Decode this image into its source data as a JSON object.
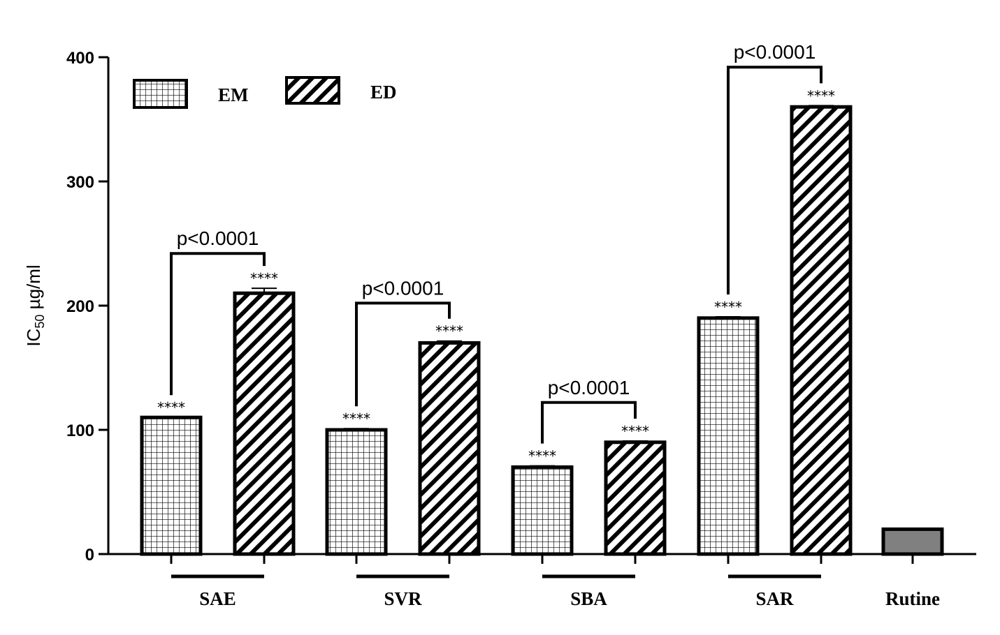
{
  "chart_data": {
    "type": "bar",
    "ylabel_main": "IC",
    "ylabel_sub": "50",
    "ylabel_unit": " µg/ml",
    "ylim": [
      0,
      400
    ],
    "yticks": [
      "0",
      "100",
      "200",
      "300",
      "400"
    ],
    "legend": [
      {
        "key": "EM",
        "label": "EM",
        "pattern": "grid"
      },
      {
        "key": "ED",
        "label": "ED",
        "pattern": "diagonal"
      }
    ],
    "legend_position": "top-left",
    "groups": [
      {
        "label": "SAE",
        "bars": [
          {
            "series": "EM",
            "value": 110,
            "error": 0,
            "stars": "****"
          },
          {
            "series": "ED",
            "value": 210,
            "error": 4,
            "stars": "****"
          }
        ],
        "comparison": "p<0.0001"
      },
      {
        "label": "SVR",
        "bars": [
          {
            "series": "EM",
            "value": 100,
            "error": 1,
            "stars": "****"
          },
          {
            "series": "ED",
            "value": 170,
            "error": 1.5,
            "stars": "****"
          }
        ],
        "comparison": "p<0.0001"
      },
      {
        "label": "SBA",
        "bars": [
          {
            "series": "EM",
            "value": 70,
            "error": 1,
            "stars": "****"
          },
          {
            "series": "ED",
            "value": 90,
            "error": 1,
            "stars": "****"
          }
        ],
        "comparison": "p<0.0001"
      },
      {
        "label": "SAR",
        "bars": [
          {
            "series": "EM",
            "value": 190,
            "error": 1,
            "stars": "****"
          },
          {
            "series": "ED",
            "value": 360,
            "error": 1,
            "stars": "****"
          }
        ],
        "comparison": "p<0.0001"
      },
      {
        "label": "Rutine",
        "bars": [
          {
            "series": "Rutine",
            "value": 20,
            "error": 0,
            "stars": ""
          }
        ],
        "comparison": ""
      }
    ],
    "colors": {
      "rutine_fill": "#808080",
      "stroke": "#000000"
    }
  }
}
